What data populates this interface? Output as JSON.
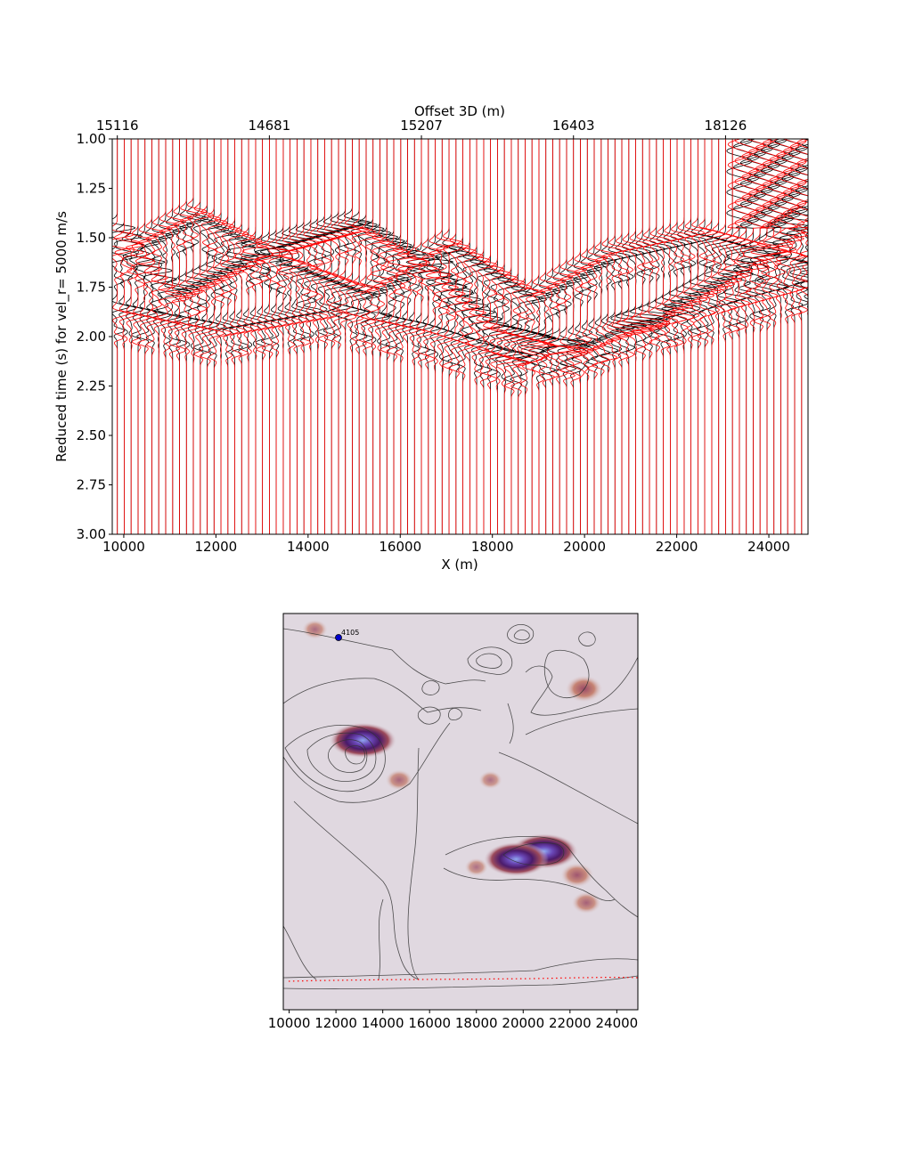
{
  "chart_data": [
    {
      "type": "line",
      "panel": "seismic-section",
      "top_axis_label": "Offset 3D (m)",
      "top_ticks": [
        {
          "x": 9860,
          "label": "15116"
        },
        {
          "x": 13160,
          "label": "14681"
        },
        {
          "x": 16460,
          "label": "15207"
        },
        {
          "x": 19760,
          "label": "16403"
        },
        {
          "x": 23060,
          "label": "18126"
        }
      ],
      "xlabel": "X (m)",
      "ylabel": "Reduced time (s) for vel_r= 5000 m/s",
      "xlim": [
        9750,
        24850
      ],
      "ylim": [
        3.0,
        1.0
      ],
      "y_inverted": true,
      "xticks": [
        10000,
        12000,
        14000,
        16000,
        18000,
        20000,
        22000,
        24000
      ],
      "yticks": [
        1.0,
        1.25,
        1.5,
        1.75,
        2.0,
        2.25,
        2.5,
        2.75,
        3.0
      ],
      "ytick_labels": [
        "1.00",
        "1.25",
        "1.50",
        "1.75",
        "2.00",
        "2.25",
        "2.50",
        "2.75",
        "3.00"
      ],
      "trace_spacing": 150,
      "trace_x_start": 9860,
      "trace_x_end": 24860,
      "series": [
        {
          "color": "#000000"
        },
        {
          "color": "#ff0000"
        }
      ],
      "arrivals": [
        {
          "x": [
            9860,
            11000,
            13000,
            15000,
            16460,
            18000,
            19760,
            21500,
            23060,
            24860
          ],
          "t": [
            1.45,
            1.78,
            1.55,
            1.42,
            1.62,
            1.95,
            2.05,
            1.88,
            1.68,
            1.4
          ]
        },
        {
          "x": [
            9860,
            11500,
            13500,
            15200,
            17000,
            18800,
            20500,
            22500,
            24860
          ],
          "t": [
            1.6,
            1.4,
            1.65,
            1.8,
            1.55,
            1.82,
            1.6,
            1.5,
            1.65
          ]
        },
        {
          "x": [
            9860,
            12000,
            14500,
            16500,
            18500,
            20500,
            22500,
            24860
          ],
          "t": [
            1.85,
            1.95,
            1.85,
            1.95,
            2.1,
            1.95,
            1.85,
            1.7
          ]
        }
      ]
    },
    {
      "type": "heatmap",
      "panel": "map",
      "xticks": [
        10000,
        12000,
        14000,
        16000,
        18000,
        20000,
        22000,
        24000
      ],
      "xlim": [
        9750,
        24900
      ],
      "point_label": "4105",
      "point_color": "#0000cc",
      "line_color": "#ff0000",
      "background_color": "#e0d8e0",
      "contour_color": "#333333",
      "anomalies": [
        {
          "x": 13150,
          "y": 0.68,
          "intensity": 1.0
        },
        {
          "x": 20900,
          "y": 0.4,
          "intensity": 1.0
        },
        {
          "x": 19700,
          "y": 0.38,
          "intensity": 0.9
        },
        {
          "x": 22600,
          "y": 0.81,
          "intensity": 0.6
        },
        {
          "x": 22300,
          "y": 0.34,
          "intensity": 0.5
        },
        {
          "x": 14700,
          "y": 0.58,
          "intensity": 0.35
        },
        {
          "x": 22700,
          "y": 0.27,
          "intensity": 0.4
        },
        {
          "x": 11100,
          "y": 0.96,
          "intensity": 0.3
        },
        {
          "x": 18600,
          "y": 0.58,
          "intensity": 0.25
        },
        {
          "x": 18000,
          "y": 0.36,
          "intensity": 0.25
        }
      ]
    }
  ]
}
